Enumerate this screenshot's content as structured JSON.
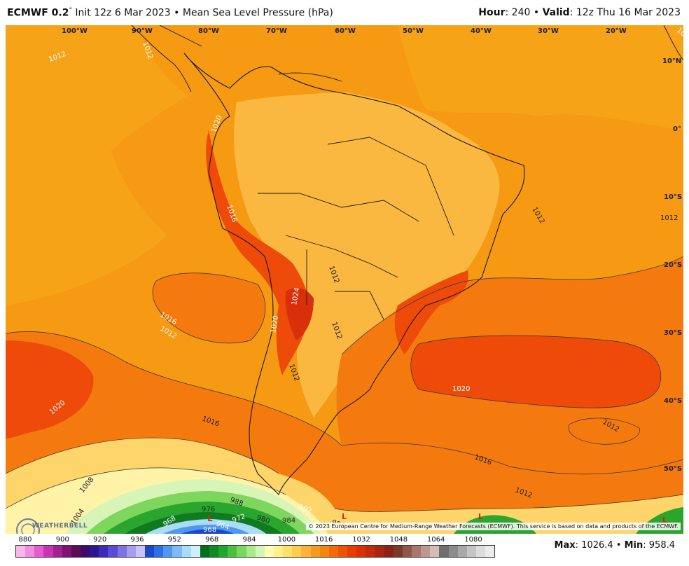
{
  "header": {
    "model": "ECMWF 0.2",
    "degree_mark": "°",
    "init": "Init 12z 6 Mar 2023",
    "sep": "•",
    "product": "Mean Sea Level Pressure (hPa)",
    "hour_label": "Hour",
    "hour_value": ": 240",
    "valid_label": "Valid",
    "valid_value": ": 12z Thu 16 Mar 2023"
  },
  "map": {
    "longitude_labels": [
      "100°W",
      "90°W",
      "80°W",
      "70°W",
      "60°W",
      "50°W",
      "40°W",
      "30°W",
      "20°W"
    ],
    "latitude_labels": [
      "10°N",
      "0°",
      "10°S",
      "20°S",
      "30°S",
      "40°S",
      "50°S"
    ],
    "isobar_labels": [
      "1012",
      "1012",
      "1016",
      "1020",
      "1016",
      "1012",
      "1020",
      "1016",
      "1012",
      "1024",
      "1020",
      "1012",
      "1012",
      "1012",
      "1012",
      "1012",
      "1020",
      "1012",
      "1016",
      "1012",
      "1008",
      "1004",
      "988",
      "984",
      "980",
      "976",
      "972",
      "968",
      "964",
      "968",
      "992",
      "984"
    ],
    "low_marker": "L"
  },
  "copyright": "© 2023 European Centre for Medium-Range Weather Forecasts (ECMWF). This service is based on data and products of the ECMWF.",
  "logo_text": "WEATHERBELL",
  "colorbar": {
    "ticks": [
      "880",
      "900",
      "920",
      "936",
      "952",
      "968",
      "984",
      "1000",
      "1016",
      "1032",
      "1048",
      "1064",
      "1080"
    ],
    "colors": [
      "#f7b7ea",
      "#f28ce0",
      "#e55bd0",
      "#c934b3",
      "#a41f91",
      "#7d1572",
      "#5b0d58",
      "#3d0a6b",
      "#2a1690",
      "#3b2bb8",
      "#5a4ad6",
      "#7f72e6",
      "#a69cf0",
      "#c9c2f7",
      "#1b48c9",
      "#2c6fe8",
      "#4f97f2",
      "#7bbcf7",
      "#a8dcf9",
      "#cdf0fa",
      "#006d1b",
      "#128a22",
      "#22a52b",
      "#47c23e",
      "#78d85a",
      "#a9e98a",
      "#d3f5b5",
      "#fffbb0",
      "#fff08a",
      "#ffe066",
      "#ffcc4d",
      "#fbb33a",
      "#f79a1f",
      "#f58410",
      "#f36b08",
      "#ef5205",
      "#e83c04",
      "#d93006",
      "#c22a0a",
      "#a82510",
      "#8e2115",
      "#7a3a2a",
      "#91564a",
      "#a8766c",
      "#c09890",
      "#d6bcb7",
      "#6f6f6f",
      "#8c8c8c",
      "#a8a8a8",
      "#c4c4c4",
      "#dcdcdc",
      "#ececec"
    ]
  },
  "stats": {
    "max_label": "Max",
    "max_value": ": 1026.4",
    "sep": "•",
    "min_label": "Min",
    "min_value": ": 958.4"
  }
}
